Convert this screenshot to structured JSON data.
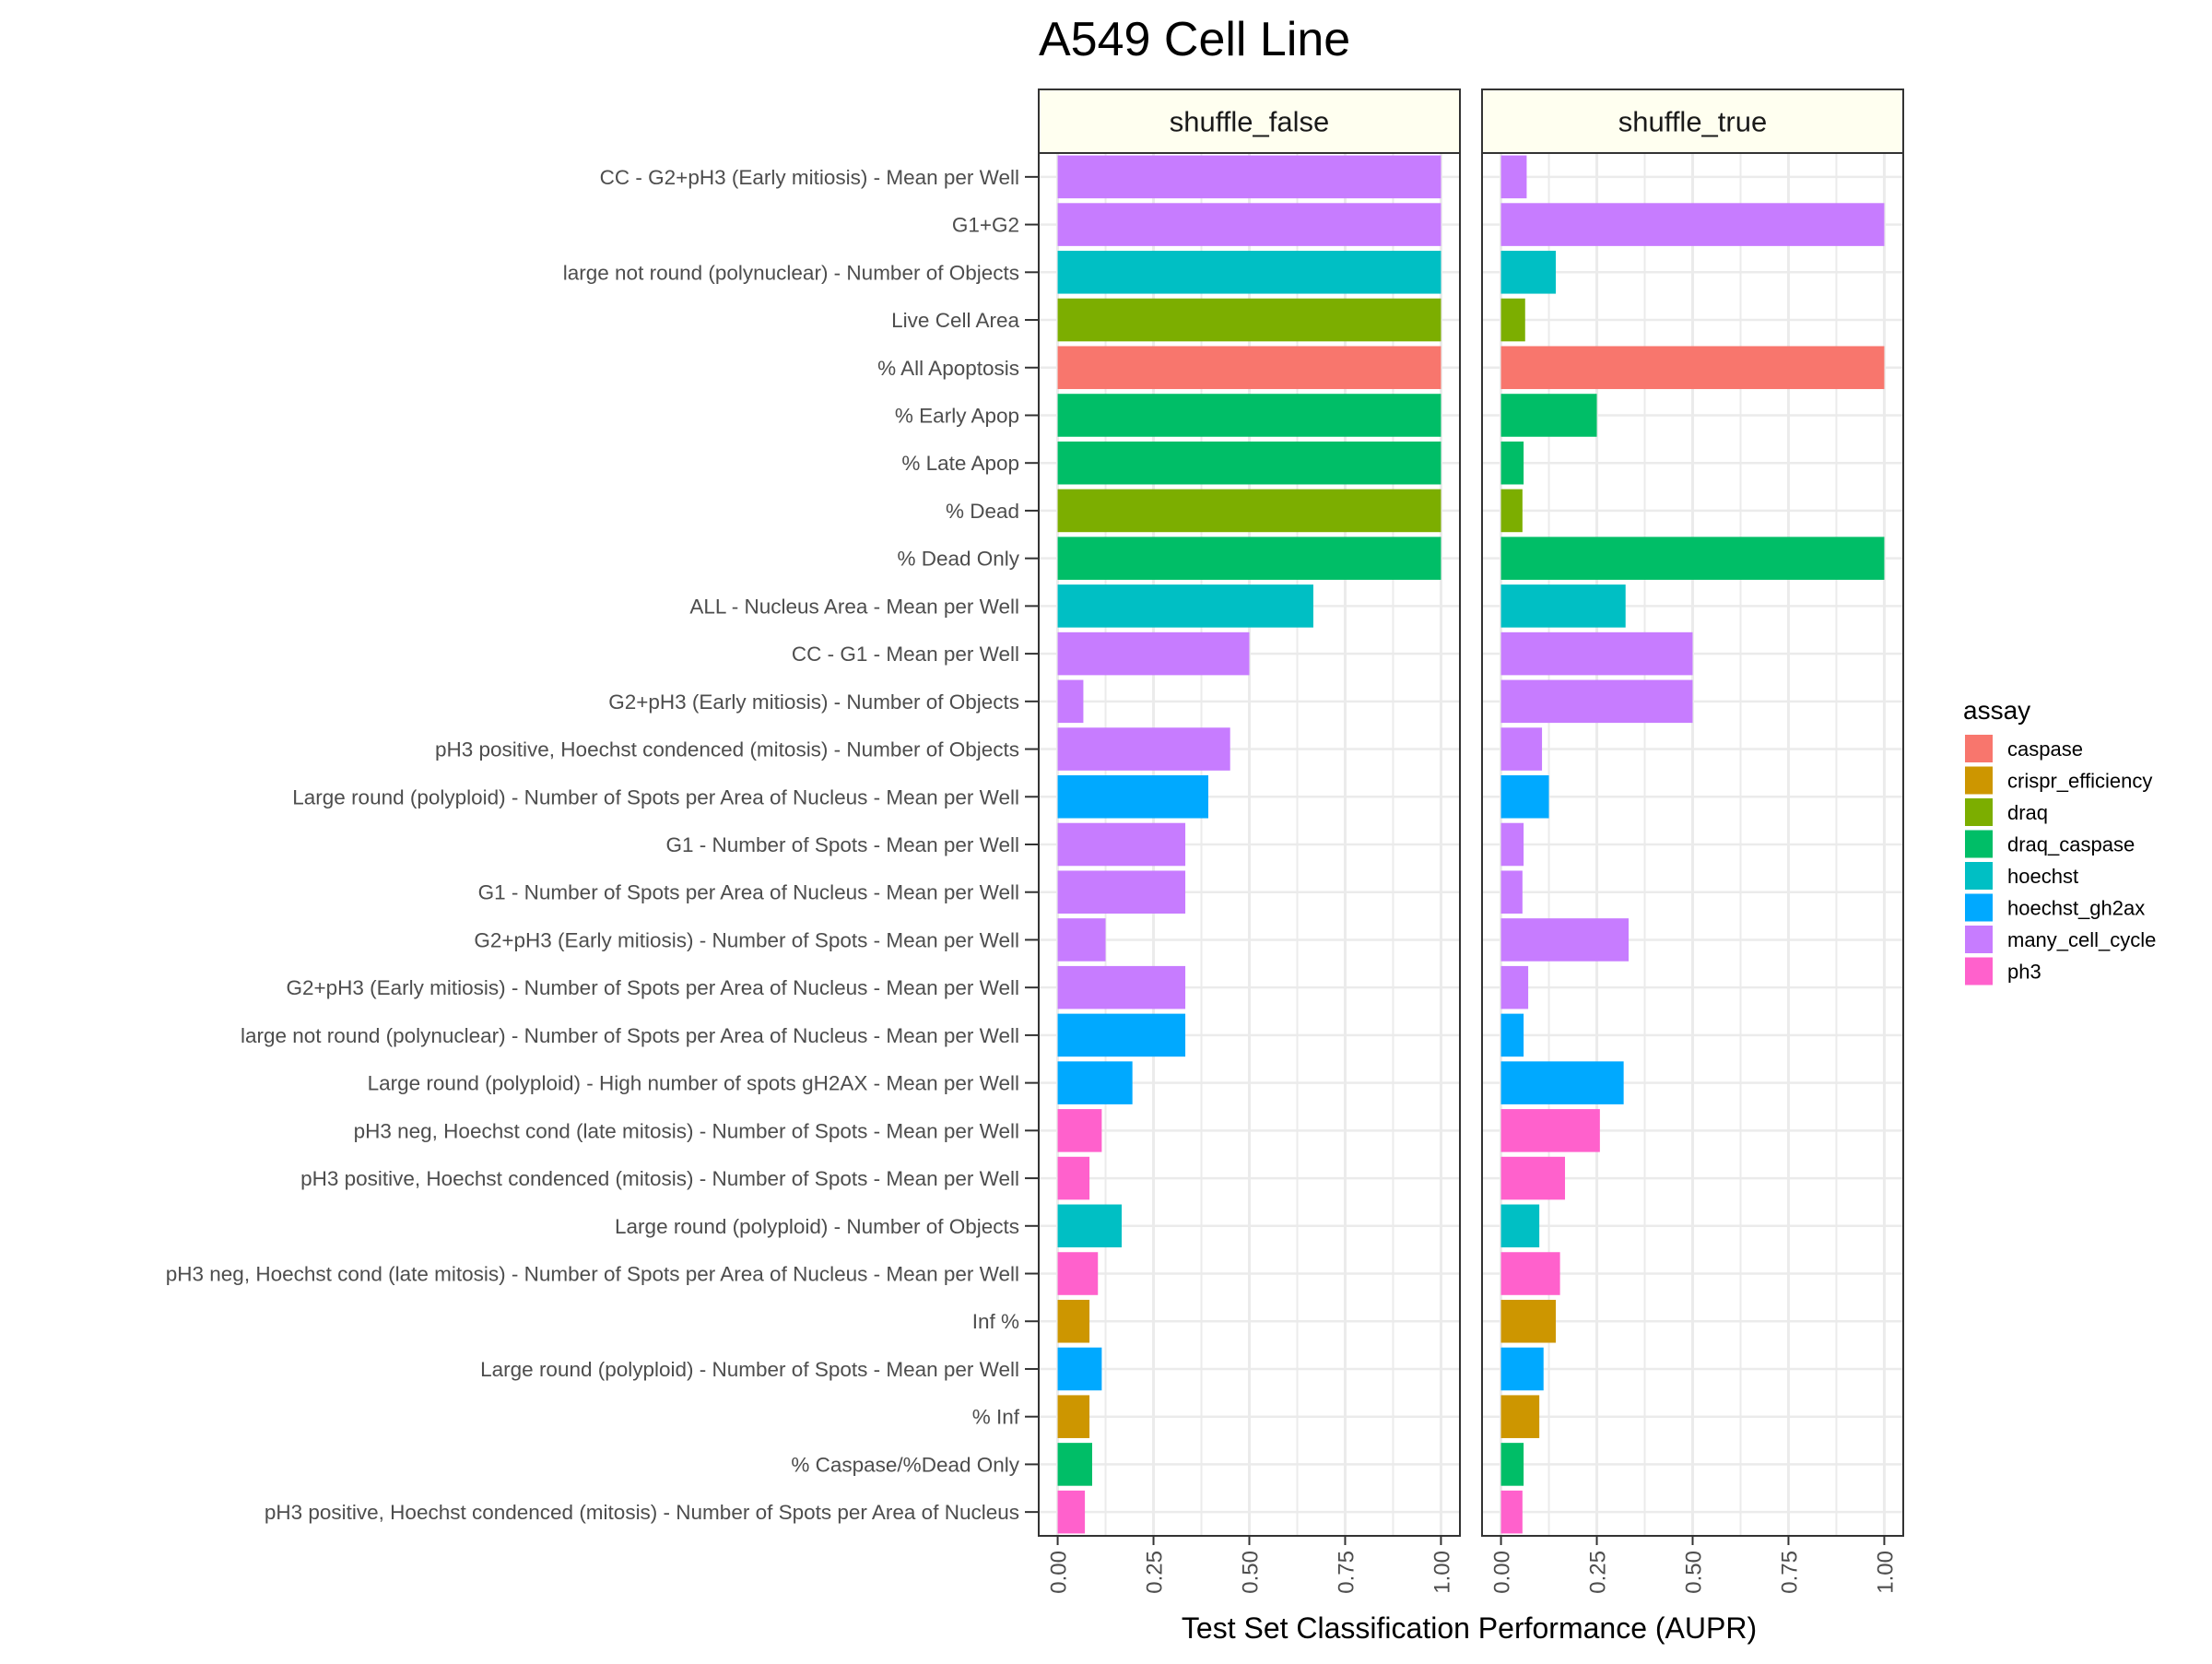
{
  "chart_data": {
    "type": "bar",
    "orientation": "horizontal",
    "title": "A549 Cell Line",
    "xlabel": "Test Set Classification Performance (AUPR)",
    "xlim": [
      0,
      1
    ],
    "xticks": [
      "0.00",
      "0.25",
      "0.50",
      "0.75",
      "1.00"
    ],
    "grid": true,
    "legend": {
      "title": "assay",
      "placement": "right",
      "entries": [
        {
          "name": "caspase",
          "color": "#F8766D"
        },
        {
          "name": "crispr_efficiency",
          "color": "#CD9600"
        },
        {
          "name": "draq",
          "color": "#7CAE00"
        },
        {
          "name": "draq_caspase",
          "color": "#00BE67"
        },
        {
          "name": "hoechst",
          "color": "#00BFC4"
        },
        {
          "name": "hoechst_gh2ax",
          "color": "#00A9FF"
        },
        {
          "name": "many_cell_cycle",
          "color": "#C77CFF"
        },
        {
          "name": "ph3",
          "color": "#FF61CC"
        }
      ]
    },
    "categories": [
      {
        "label": "CC - G2+pH3 (Early mitiosis) - Mean per Well",
        "assay": "many_cell_cycle"
      },
      {
        "label": "G1+G2",
        "assay": "many_cell_cycle"
      },
      {
        "label": "large not round (polynuclear) - Number of Objects",
        "assay": "hoechst"
      },
      {
        "label": "Live Cell Area",
        "assay": "draq"
      },
      {
        "label": "% All Apoptosis",
        "assay": "caspase"
      },
      {
        "label": "% Early Apop",
        "assay": "draq_caspase"
      },
      {
        "label": "% Late Apop",
        "assay": "draq_caspase"
      },
      {
        "label": "% Dead",
        "assay": "draq"
      },
      {
        "label": "% Dead Only",
        "assay": "draq_caspase"
      },
      {
        "label": "ALL - Nucleus Area - Mean per Well",
        "assay": "hoechst"
      },
      {
        "label": "CC - G1 - Mean per Well",
        "assay": "many_cell_cycle"
      },
      {
        "label": "G2+pH3 (Early mitiosis) - Number of Objects",
        "assay": "many_cell_cycle"
      },
      {
        "label": "pH3 positive, Hoechst condenced (mitosis) - Number of Objects",
        "assay": "many_cell_cycle"
      },
      {
        "label": "Large round (polyploid) - Number of Spots per Area of Nucleus - Mean per Well",
        "assay": "hoechst_gh2ax"
      },
      {
        "label": "G1 - Number of Spots - Mean per Well",
        "assay": "many_cell_cycle"
      },
      {
        "label": "G1 - Number of Spots per Area of Nucleus - Mean per Well",
        "assay": "many_cell_cycle"
      },
      {
        "label": "G2+pH3 (Early mitiosis) - Number of Spots - Mean per Well",
        "assay": "many_cell_cycle"
      },
      {
        "label": "G2+pH3 (Early mitiosis) - Number of Spots per Area of Nucleus - Mean per Well",
        "assay": "many_cell_cycle"
      },
      {
        "label": "large not round (polynuclear) - Number of Spots per Area of Nucleus - Mean per Well",
        "assay": "hoechst_gh2ax"
      },
      {
        "label": "Large round (polyploid) - High number of spots gH2AX - Mean per Well",
        "assay": "hoechst_gh2ax"
      },
      {
        "label": "pH3 neg, Hoechst cond (late mitosis) - Number of Spots - Mean per Well",
        "assay": "ph3"
      },
      {
        "label": "pH3 positive, Hoechst condenced (mitosis) - Number of Spots - Mean per Well",
        "assay": "ph3"
      },
      {
        "label": "Large round (polyploid) - Number of Objects",
        "assay": "hoechst"
      },
      {
        "label": "pH3 neg, Hoechst cond (late mitosis) - Number of Spots per Area of Nucleus - Mean per Well",
        "assay": "ph3"
      },
      {
        "label": "Inf %",
        "assay": "crispr_efficiency"
      },
      {
        "label": "Large round (polyploid) - Number of Spots - Mean per Well",
        "assay": "hoechst_gh2ax"
      },
      {
        "label": "% Inf",
        "assay": "crispr_efficiency"
      },
      {
        "label": "% Caspase/%Dead Only",
        "assay": "draq_caspase"
      },
      {
        "label": "pH3 positive, Hoechst condenced (mitosis) - Number of Spots per Area of Nucleus",
        "assay": "ph3"
      }
    ],
    "panels": [
      {
        "name": "shuffle_false",
        "values": [
          1.0,
          1.0,
          1.0,
          1.0,
          1.0,
          1.0,
          1.0,
          1.0,
          1.0,
          0.667,
          0.5,
          0.067,
          0.45,
          0.393,
          0.333,
          0.333,
          0.125,
          0.333,
          0.333,
          0.195,
          0.115,
          0.083,
          0.167,
          0.105,
          0.083,
          0.115,
          0.083,
          0.09,
          0.071
        ]
      },
      {
        "name": "shuffle_true",
        "values": [
          0.067,
          1.0,
          0.143,
          0.063,
          1.0,
          0.25,
          0.059,
          0.056,
          1.0,
          0.325,
          0.5,
          0.5,
          0.107,
          0.125,
          0.059,
          0.056,
          0.333,
          0.071,
          0.059,
          0.32,
          0.258,
          0.167,
          0.1,
          0.154,
          0.143,
          0.111,
          0.1,
          0.059,
          0.056
        ]
      }
    ]
  }
}
